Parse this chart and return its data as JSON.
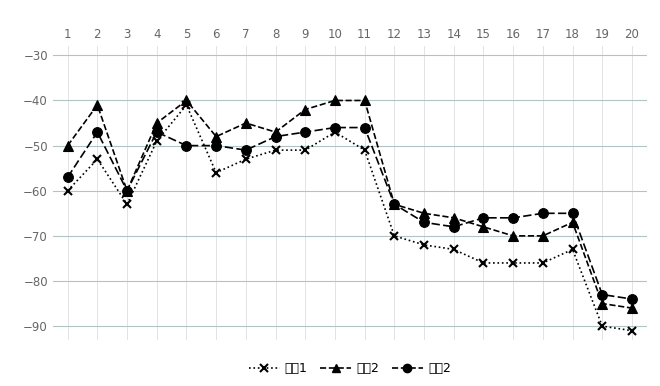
{
  "x": [
    1,
    2,
    3,
    4,
    5,
    6,
    7,
    8,
    9,
    10,
    11,
    12,
    13,
    14,
    15,
    16,
    17,
    18,
    19,
    20
  ],
  "series1": [
    -60,
    -53,
    -63,
    -49,
    -41,
    -56,
    -53,
    -51,
    -51,
    -47,
    -51,
    -70,
    -72,
    -73,
    -76,
    -76,
    -76,
    -73,
    -90,
    -91
  ],
  "series2": [
    -50,
    -41,
    -60,
    -45,
    -40,
    -48,
    -45,
    -47,
    -42,
    -40,
    -40,
    -63,
    -65,
    -66,
    -68,
    -70,
    -70,
    -67,
    -85,
    -86
  ],
  "series3": [
    -57,
    -47,
    -60,
    -47,
    -50,
    -50,
    -51,
    -48,
    -47,
    -46,
    -46,
    -63,
    -67,
    -68,
    -66,
    -66,
    -65,
    -65,
    -83,
    -84
  ],
  "ylim": [
    -93,
    -28
  ],
  "yticks": [
    -90,
    -80,
    -70,
    -60,
    -50,
    -40,
    -30
  ],
  "xticks": [
    1,
    2,
    3,
    4,
    5,
    6,
    7,
    8,
    9,
    10,
    11,
    12,
    13,
    14,
    15,
    16,
    17,
    18,
    19,
    20
  ],
  "legend": [
    "设备1",
    "设备2",
    "设备2"
  ],
  "bg_color": "#ffffff",
  "grid_color_h": "#b0c4c4",
  "grid_color_v": "#d8d8d8",
  "line_color": "#000000",
  "tick_color": "#666666"
}
